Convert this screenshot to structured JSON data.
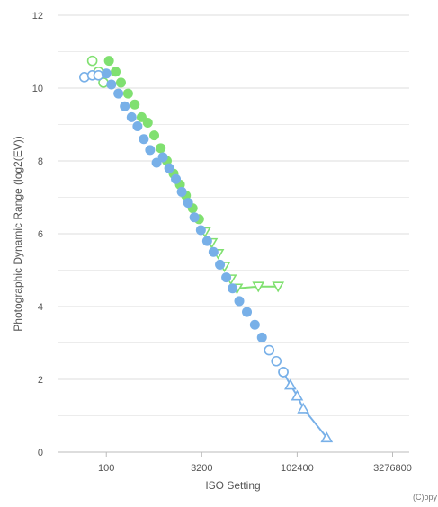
{
  "chart_data": {
    "type": "scatter",
    "xlabel": "ISO Setting",
    "ylabel": "Photographic Dynamic Range (log2(EV))",
    "x_scale": "log",
    "xlim": [
      17,
      6000000
    ],
    "ylim": [
      0,
      12
    ],
    "x_ticks": [
      100,
      3200,
      102400,
      3276800
    ],
    "x_tick_labels": [
      "100",
      "3200",
      "102400",
      "3276800"
    ],
    "y_ticks": [
      0,
      2,
      4,
      6,
      8,
      10,
      12
    ],
    "y_tick_labels": [
      "0",
      "2",
      "4",
      "6",
      "8",
      "10",
      "12"
    ],
    "grid": "horizontal",
    "credit": "(C)opy",
    "colors": {
      "green": "#80e070",
      "blue": "#78b0e8"
    },
    "series": [
      {
        "color": "#80e070",
        "line": false,
        "points": [
          {
            "x": 60,
            "y": 10.75,
            "m": "open-circle"
          },
          {
            "x": 75,
            "y": 10.45,
            "m": "open-circle"
          },
          {
            "x": 90,
            "y": 10.15,
            "m": "open-circle"
          },
          {
            "x": 110,
            "y": 10.75,
            "m": "dot"
          },
          {
            "x": 140,
            "y": 10.45,
            "m": "dot"
          },
          {
            "x": 170,
            "y": 10.15,
            "m": "dot"
          },
          {
            "x": 220,
            "y": 9.85,
            "m": "dot"
          },
          {
            "x": 280,
            "y": 9.55,
            "m": "dot"
          },
          {
            "x": 360,
            "y": 9.2,
            "m": "dot"
          },
          {
            "x": 450,
            "y": 9.05,
            "m": "dot"
          },
          {
            "x": 570,
            "y": 8.7,
            "m": "dot"
          },
          {
            "x": 720,
            "y": 8.35,
            "m": "dot"
          },
          {
            "x": 900,
            "y": 8.0,
            "m": "dot"
          },
          {
            "x": 1150,
            "y": 7.65,
            "m": "dot"
          },
          {
            "x": 1450,
            "y": 7.35,
            "m": "dot"
          },
          {
            "x": 1800,
            "y": 7.05,
            "m": "dot"
          },
          {
            "x": 2300,
            "y": 6.7,
            "m": "dot"
          },
          {
            "x": 2900,
            "y": 6.4,
            "m": "dot"
          },
          {
            "x": 3600,
            "y": 6.05,
            "m": "open-triangle-down"
          },
          {
            "x": 4600,
            "y": 5.75,
            "m": "open-triangle-down"
          },
          {
            "x": 5800,
            "y": 5.45,
            "m": "open-triangle-down"
          },
          {
            "x": 7300,
            "y": 5.1,
            "m": "open-triangle-down"
          },
          {
            "x": 9200,
            "y": 4.75,
            "m": "open-triangle-down"
          },
          {
            "x": 11500,
            "y": 4.5,
            "m": "open-triangle-down"
          }
        ]
      },
      {
        "color": "#80e070",
        "line": true,
        "points": [
          {
            "x": 11500,
            "y": 4.5,
            "m": "open-triangle-down"
          },
          {
            "x": 25000,
            "y": 4.55,
            "m": "open-triangle-down"
          },
          {
            "x": 51200,
            "y": 4.55,
            "m": "open-triangle-down"
          }
        ]
      },
      {
        "color": "#78b0e8",
        "line": false,
        "points": [
          {
            "x": 45,
            "y": 10.3,
            "m": "open-circle"
          },
          {
            "x": 60,
            "y": 10.35,
            "m": "open-circle"
          },
          {
            "x": 75,
            "y": 10.35,
            "m": "open-circle"
          },
          {
            "x": 100,
            "y": 10.4,
            "m": "dot"
          },
          {
            "x": 120,
            "y": 10.1,
            "m": "dot"
          },
          {
            "x": 155,
            "y": 9.85,
            "m": "dot"
          },
          {
            "x": 195,
            "y": 9.5,
            "m": "dot"
          },
          {
            "x": 250,
            "y": 9.2,
            "m": "dot"
          },
          {
            "x": 310,
            "y": 8.95,
            "m": "dot"
          },
          {
            "x": 390,
            "y": 8.6,
            "m": "dot"
          },
          {
            "x": 490,
            "y": 8.3,
            "m": "dot"
          },
          {
            "x": 620,
            "y": 7.95,
            "m": "dot"
          },
          {
            "x": 780,
            "y": 8.1,
            "m": "dot"
          },
          {
            "x": 980,
            "y": 7.8,
            "m": "dot"
          },
          {
            "x": 1250,
            "y": 7.5,
            "m": "dot"
          },
          {
            "x": 1550,
            "y": 7.15,
            "m": "dot"
          },
          {
            "x": 1950,
            "y": 6.85,
            "m": "dot"
          },
          {
            "x": 2450,
            "y": 6.45,
            "m": "dot"
          },
          {
            "x": 3100,
            "y": 6.1,
            "m": "dot"
          },
          {
            "x": 3900,
            "y": 5.8,
            "m": "dot"
          },
          {
            "x": 4900,
            "y": 5.5,
            "m": "dot"
          },
          {
            "x": 6200,
            "y": 5.15,
            "m": "dot"
          },
          {
            "x": 7800,
            "y": 4.8,
            "m": "dot"
          },
          {
            "x": 9800,
            "y": 4.5,
            "m": "dot"
          },
          {
            "x": 12500,
            "y": 4.15,
            "m": "dot"
          },
          {
            "x": 16500,
            "y": 3.85,
            "m": "dot"
          },
          {
            "x": 22000,
            "y": 3.5,
            "m": "dot"
          },
          {
            "x": 28500,
            "y": 3.15,
            "m": "dot"
          },
          {
            "x": 37000,
            "y": 2.8,
            "m": "open-circle"
          },
          {
            "x": 48000,
            "y": 2.5,
            "m": "open-circle"
          },
          {
            "x": 62000,
            "y": 2.2,
            "m": "open-circle"
          }
        ]
      },
      {
        "color": "#78b0e8",
        "line": true,
        "points": [
          {
            "x": 62000,
            "y": 2.2,
            "m": "open-circle"
          },
          {
            "x": 80000,
            "y": 1.85,
            "m": "open-triangle-up"
          },
          {
            "x": 102400,
            "y": 1.55,
            "m": "open-triangle-up"
          },
          {
            "x": 128000,
            "y": 1.2,
            "m": "open-triangle-up"
          },
          {
            "x": 300000,
            "y": 0.4,
            "m": "open-triangle-up"
          }
        ]
      }
    ]
  }
}
